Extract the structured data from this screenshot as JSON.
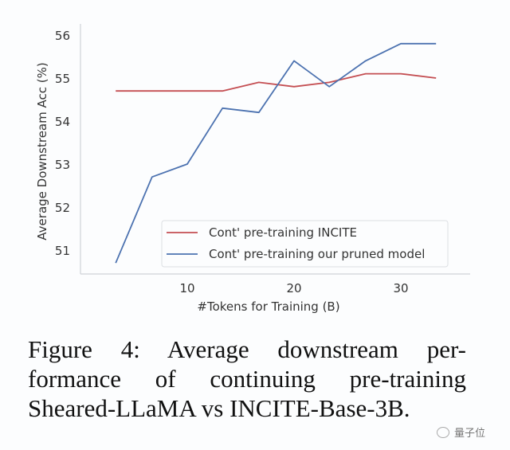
{
  "chart_data": {
    "type": "line",
    "title": "",
    "xlabel": "#Tokens for Training (B)",
    "ylabel": "Average Downstream Acc (%)",
    "xlim": [
      1.3,
      35.2
    ],
    "ylim": [
      50.45,
      56.15
    ],
    "xticks": [
      10,
      20,
      30
    ],
    "xtick_labels": [
      "10",
      "20",
      "30"
    ],
    "yticks": [
      51,
      52,
      53,
      54,
      55,
      56
    ],
    "ytick_labels": [
      "51",
      "52",
      "53",
      "54",
      "55",
      "56"
    ],
    "grid": false,
    "legend_position": "lower-right",
    "x": [
      3.3,
      6.7,
      10.0,
      13.3,
      16.7,
      20.0,
      23.3,
      26.7,
      30.0,
      33.3
    ],
    "series": [
      {
        "name": "Cont' pre-training INCITE",
        "color": "#c44e52",
        "values": [
          54.7,
          54.7,
          54.7,
          54.7,
          54.9,
          54.8,
          54.9,
          55.1,
          55.1,
          55.0
        ]
      },
      {
        "name": "Cont' pre-training our pruned model",
        "color": "#4c72b0",
        "values": [
          50.7,
          52.7,
          53.0,
          54.3,
          54.2,
          55.4,
          54.8,
          55.4,
          55.8,
          55.8
        ]
      }
    ]
  },
  "caption": {
    "lines": [
      "Figure 4:  Average downstream per-",
      "formance of continuing pre-training",
      "Sheared-LLaMA vs INCITE-Base-3B."
    ]
  },
  "watermark": {
    "text": "量子位",
    "icon": "wechat-logo-icon"
  }
}
